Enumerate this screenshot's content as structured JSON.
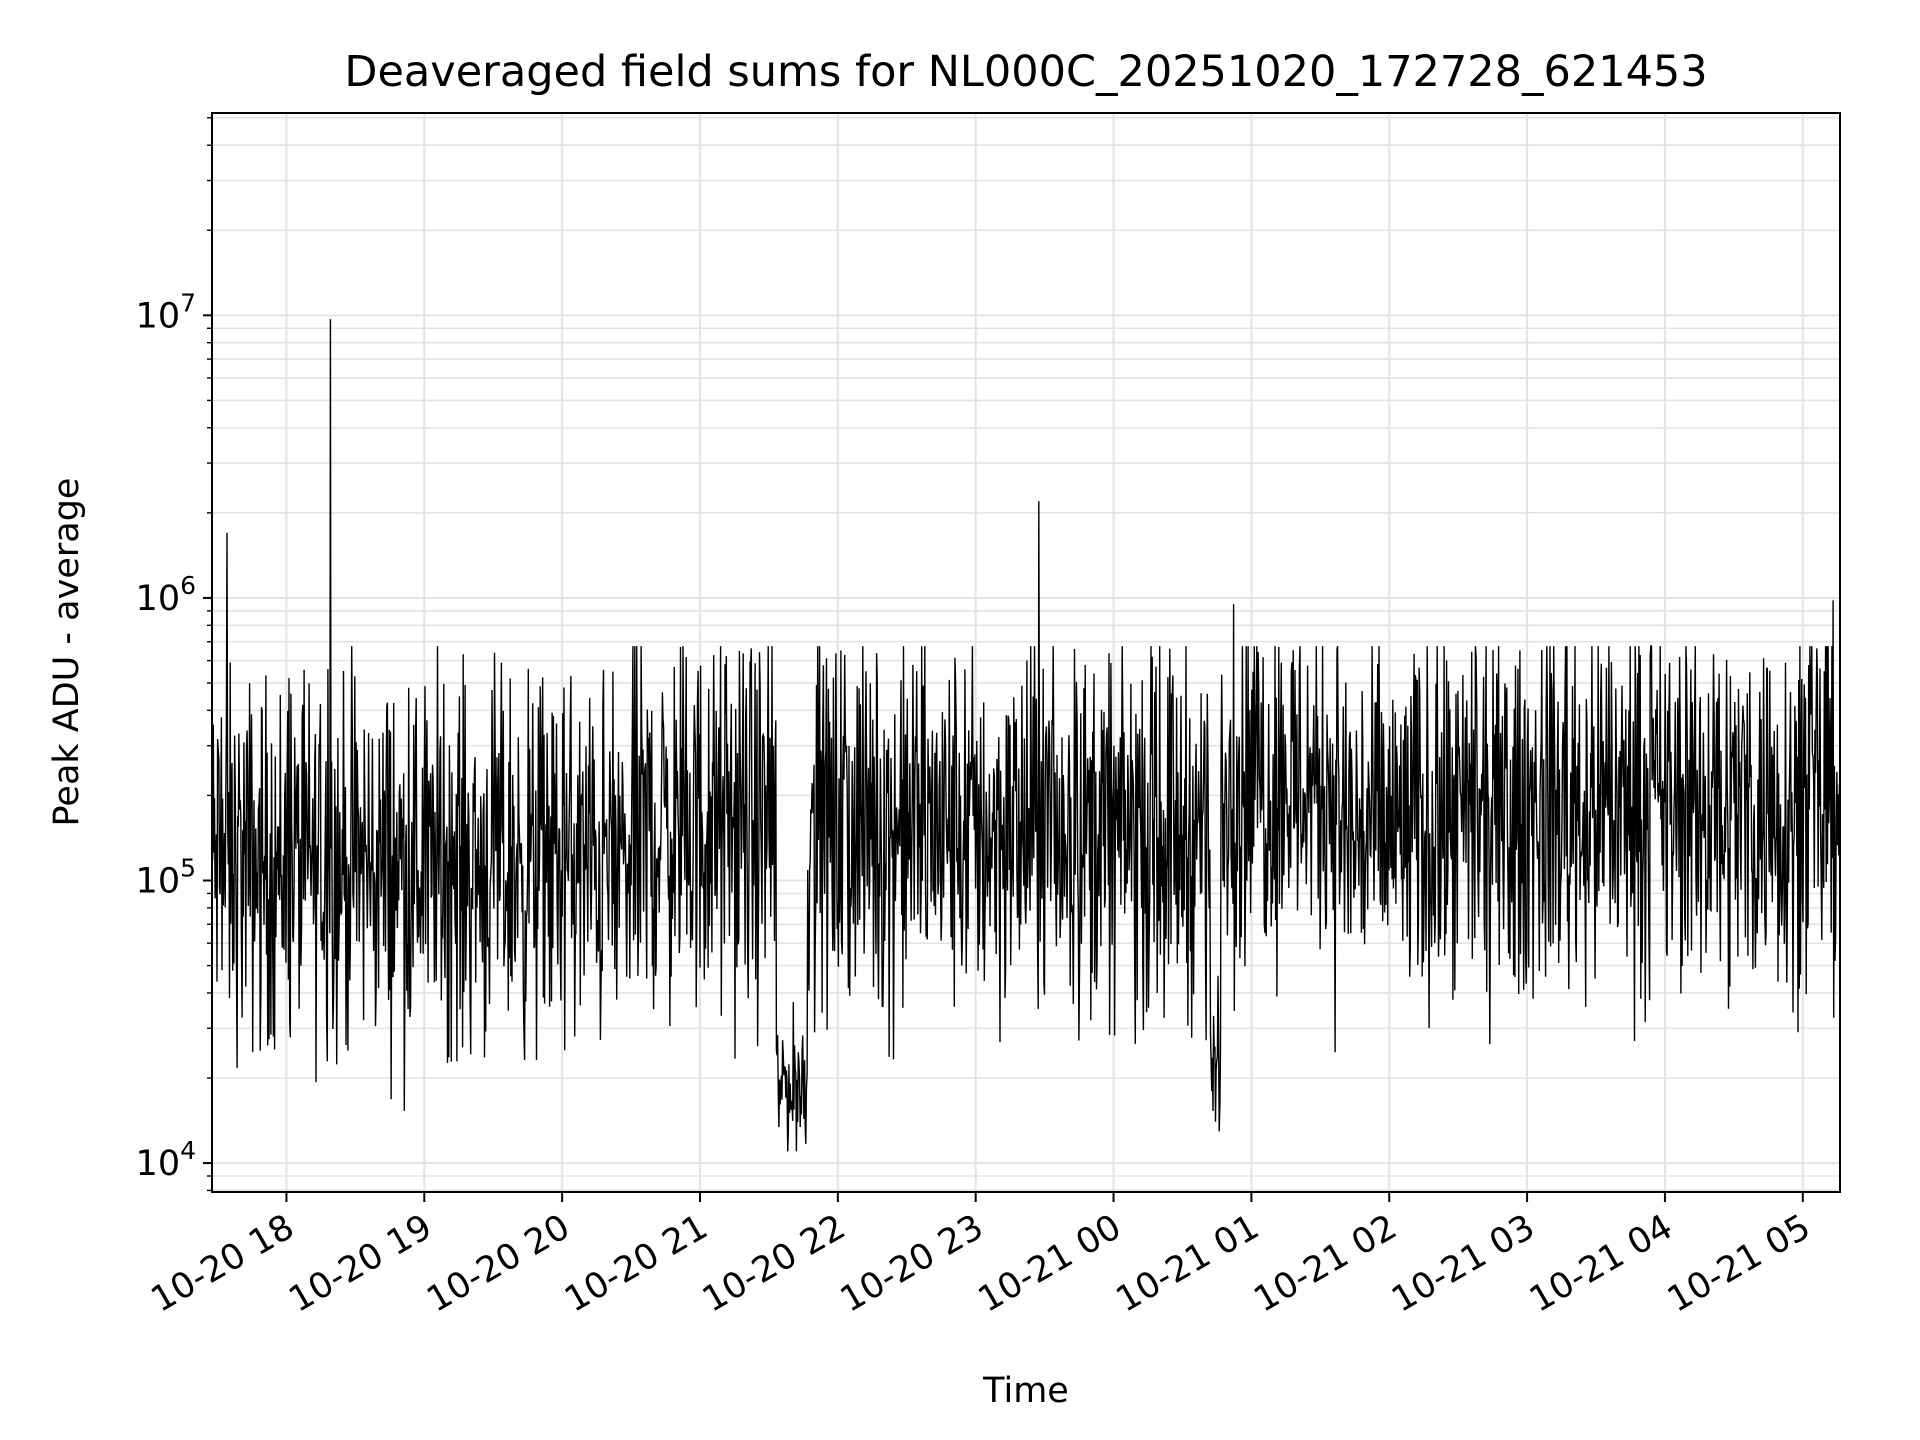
{
  "chart_data": {
    "type": "line",
    "title": "Deaveraged field sums for NL000C_20251020_172728_621453",
    "xlabel": "Time",
    "ylabel": "Peak ADU - average",
    "yscale": "log",
    "grid": true,
    "line_color": "#000000",
    "grid_color": "#e3e3e3",
    "xlim_hours": [
      17.46,
      29.27
    ],
    "ylim": [
      7900,
      52000000
    ],
    "x_ticks": [
      {
        "value": 18,
        "label": "10-20 18"
      },
      {
        "value": 19,
        "label": "10-20 19"
      },
      {
        "value": 20,
        "label": "10-20 20"
      },
      {
        "value": 21,
        "label": "10-20 21"
      },
      {
        "value": 22,
        "label": "10-20 22"
      },
      {
        "value": 23,
        "label": "10-20 23"
      },
      {
        "value": 24,
        "label": "10-21 00"
      },
      {
        "value": 25,
        "label": "10-21 01"
      },
      {
        "value": 26,
        "label": "10-21 02"
      },
      {
        "value": 27,
        "label": "10-21 03"
      },
      {
        "value": 28,
        "label": "10-21 04"
      },
      {
        "value": 29,
        "label": "10-21 05"
      }
    ],
    "y_ticks": [
      {
        "value": 10000,
        "base": "10",
        "exp": "4"
      },
      {
        "value": 100000,
        "base": "10",
        "exp": "5"
      },
      {
        "value": 1000000,
        "base": "10",
        "exp": "6"
      },
      {
        "value": 10000000,
        "base": "10",
        "exp": "7"
      }
    ],
    "series_summary": {
      "name": "deaveraged field sum",
      "approx_baseline": 150000,
      "min_value": 11000,
      "max_value": 9700000
    },
    "notable_points": [
      {
        "time_hours": 17.57,
        "value": 1700000
      },
      {
        "time_hours": 18.32,
        "value": 9700000
      },
      {
        "time_hours": 18.3,
        "value": 560000
      },
      {
        "time_hours": 21.7,
        "value": 11000
      },
      {
        "time_hours": 23.46,
        "value": 2200000
      },
      {
        "time_hours": 24.74,
        "value": 14000
      },
      {
        "time_hours": 24.87,
        "value": 950000
      },
      {
        "time_hours": 29.22,
        "value": 980000
      }
    ]
  }
}
